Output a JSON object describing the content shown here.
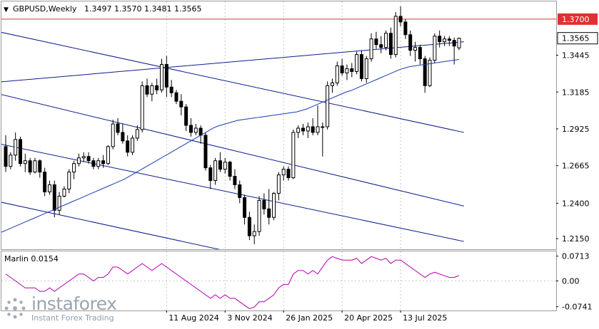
{
  "header": {
    "menu_glyph": "▼",
    "symbol": "GBPUSD,Weekly",
    "open": "1.3497",
    "high": "1.3570",
    "low": "1.3481",
    "close": "1.3565"
  },
  "indicator": {
    "label": "Marlin 0.0154"
  },
  "brand": {
    "name": "instaforex",
    "tagline": "Instant Forex Trading"
  },
  "colors": {
    "bull": "#ffffff",
    "bear": "#000000",
    "channel": "#0c1c8c",
    "ma": "#1a3bb0",
    "resistance": "#e03030",
    "marlin": "#b000b0",
    "grid": "#c8c8c8"
  },
  "chart_data": [
    {
      "type": "candlestick",
      "symbol": "GBPUSD",
      "timeframe": "Weekly",
      "y_ticks": [
        "1.3445",
        "1.3185",
        "1.2925",
        "1.2665",
        "1.2400",
        "1.2150"
      ],
      "ylim": [
        1.2075,
        1.3825
      ],
      "x_ticks": [
        "11 Aug 2024",
        "3 Nov 2024",
        "26 Jan 2025",
        "20 Apr 2025",
        "13 Jul 2025"
      ],
      "horizontal_levels": [
        {
          "label": "1.3700",
          "value": 1.37,
          "color": "#e03030"
        }
      ],
      "current_price_label": "1.3565",
      "current_price": 1.3565,
      "candles": [
        [
          1.28,
          1.288,
          1.262,
          1.266
        ],
        [
          1.266,
          1.276,
          1.264,
          1.274
        ],
        [
          1.274,
          1.29,
          1.27,
          1.285
        ],
        [
          1.285,
          1.287,
          1.266,
          1.268
        ],
        [
          1.268,
          1.275,
          1.262,
          1.27
        ],
        [
          1.27,
          1.272,
          1.26,
          1.262
        ],
        [
          1.262,
          1.272,
          1.261,
          1.27
        ],
        [
          1.27,
          1.271,
          1.258,
          1.262
        ],
        [
          1.262,
          1.265,
          1.245,
          1.248
        ],
        [
          1.248,
          1.256,
          1.246,
          1.253
        ],
        [
          1.253,
          1.256,
          1.23,
          1.235
        ],
        [
          1.235,
          1.248,
          1.232,
          1.245
        ],
        [
          1.245,
          1.252,
          1.244,
          1.25
        ],
        [
          1.25,
          1.264,
          1.247,
          1.262
        ],
        [
          1.262,
          1.27,
          1.257,
          1.268
        ],
        [
          1.268,
          1.275,
          1.266,
          1.272
        ],
        [
          1.272,
          1.276,
          1.269,
          1.273
        ],
        [
          1.273,
          1.276,
          1.268,
          1.27
        ],
        [
          1.27,
          1.272,
          1.264,
          1.266
        ],
        [
          1.266,
          1.272,
          1.264,
          1.27
        ],
        [
          1.27,
          1.274,
          1.265,
          1.268
        ],
        [
          1.268,
          1.281,
          1.267,
          1.28
        ],
        [
          1.28,
          1.299,
          1.278,
          1.296
        ],
        [
          1.296,
          1.3,
          1.288,
          1.29
        ],
        [
          1.29,
          1.296,
          1.282,
          1.284
        ],
        [
          1.284,
          1.288,
          1.273,
          1.276
        ],
        [
          1.276,
          1.288,
          1.274,
          1.286
        ],
        [
          1.286,
          1.295,
          1.284,
          1.292
        ],
        [
          1.292,
          1.326,
          1.29,
          1.323
        ],
        [
          1.323,
          1.328,
          1.315,
          1.317
        ],
        [
          1.317,
          1.325,
          1.312,
          1.323
        ],
        [
          1.323,
          1.328,
          1.317,
          1.32
        ],
        [
          1.32,
          1.342,
          1.318,
          1.338
        ],
        [
          1.338,
          1.344,
          1.315,
          1.322
        ],
        [
          1.322,
          1.327,
          1.315,
          1.318
        ],
        [
          1.318,
          1.32,
          1.31,
          1.312
        ],
        [
          1.312,
          1.317,
          1.302,
          1.308
        ],
        [
          1.308,
          1.31,
          1.291,
          1.295
        ],
        [
          1.295,
          1.3,
          1.287,
          1.29
        ],
        [
          1.29,
          1.296,
          1.288,
          1.293
        ],
        [
          1.293,
          1.295,
          1.282,
          1.288
        ],
        [
          1.288,
          1.29,
          1.263,
          1.265
        ],
        [
          1.265,
          1.267,
          1.25,
          1.256
        ],
        [
          1.256,
          1.272,
          1.253,
          1.27
        ],
        [
          1.27,
          1.276,
          1.262,
          1.264
        ],
        [
          1.264,
          1.272,
          1.261,
          1.269
        ],
        [
          1.269,
          1.27,
          1.256,
          1.259
        ],
        [
          1.259,
          1.264,
          1.25,
          1.253
        ],
        [
          1.253,
          1.256,
          1.24,
          1.244
        ],
        [
          1.244,
          1.246,
          1.225,
          1.23
        ],
        [
          1.23,
          1.234,
          1.214,
          1.217
        ],
        [
          1.217,
          1.225,
          1.211,
          1.22
        ],
        [
          1.22,
          1.245,
          1.217,
          1.242
        ],
        [
          1.242,
          1.247,
          1.232,
          1.236
        ],
        [
          1.236,
          1.25,
          1.225,
          1.23
        ],
        [
          1.23,
          1.248,
          1.228,
          1.247
        ],
        [
          1.247,
          1.262,
          1.242,
          1.26
        ],
        [
          1.26,
          1.266,
          1.256,
          1.264
        ],
        [
          1.264,
          1.266,
          1.256,
          1.258
        ],
        [
          1.258,
          1.292,
          1.257,
          1.29
        ],
        [
          1.29,
          1.295,
          1.286,
          1.293
        ],
        [
          1.293,
          1.296,
          1.288,
          1.291
        ],
        [
          1.291,
          1.297,
          1.286,
          1.294
        ],
        [
          1.294,
          1.3,
          1.288,
          1.29
        ],
        [
          1.29,
          1.309,
          1.288,
          1.294
        ],
        [
          1.294,
          1.297,
          1.273,
          1.294
        ],
        [
          1.294,
          1.326,
          1.292,
          1.323
        ],
        [
          1.323,
          1.328,
          1.318,
          1.325
        ],
        [
          1.325,
          1.34,
          1.323,
          1.337
        ],
        [
          1.337,
          1.342,
          1.33,
          1.332
        ],
        [
          1.332,
          1.338,
          1.327,
          1.335
        ],
        [
          1.335,
          1.339,
          1.329,
          1.333
        ],
        [
          1.333,
          1.347,
          1.331,
          1.345
        ],
        [
          1.345,
          1.348,
          1.326,
          1.328
        ],
        [
          1.328,
          1.344,
          1.325,
          1.342
        ],
        [
          1.342,
          1.36,
          1.34,
          1.356
        ],
        [
          1.356,
          1.361,
          1.349,
          1.352
        ],
        [
          1.352,
          1.358,
          1.346,
          1.35
        ],
        [
          1.35,
          1.362,
          1.348,
          1.36
        ],
        [
          1.36,
          1.364,
          1.342,
          1.345
        ],
        [
          1.345,
          1.375,
          1.343,
          1.372
        ],
        [
          1.372,
          1.379,
          1.365,
          1.368
        ],
        [
          1.368,
          1.37,
          1.356,
          1.359
        ],
        [
          1.359,
          1.362,
          1.344,
          1.348
        ],
        [
          1.348,
          1.354,
          1.34,
          1.35
        ],
        [
          1.35,
          1.352,
          1.338,
          1.342
        ],
        [
          1.342,
          1.344,
          1.318,
          1.323
        ],
        [
          1.323,
          1.343,
          1.322,
          1.341
        ],
        [
          1.341,
          1.36,
          1.339,
          1.358
        ],
        [
          1.358,
          1.362,
          1.35,
          1.354
        ],
        [
          1.354,
          1.358,
          1.351,
          1.356
        ],
        [
          1.356,
          1.358,
          1.351,
          1.355
        ],
        [
          1.355,
          1.357,
          1.338,
          1.351
        ],
        [
          1.3497,
          1.357,
          1.3481,
          1.3565
        ]
      ],
      "moving_average": {
        "values": [
          1.2195,
          1.221,
          1.2225,
          1.224,
          1.2255,
          1.227,
          1.2285,
          1.23,
          1.2315,
          1.233,
          1.2345,
          1.236,
          1.2375,
          1.239,
          1.2405,
          1.242,
          1.2435,
          1.245,
          1.2465,
          1.248,
          1.2495,
          1.251,
          1.2525,
          1.254,
          1.2555,
          1.257,
          1.259,
          1.261,
          1.263,
          1.265,
          1.267,
          1.269,
          1.271,
          1.273,
          1.275,
          1.277,
          1.279,
          1.281,
          1.283,
          1.285,
          1.287,
          1.289,
          1.291,
          1.293,
          1.2945,
          1.2955,
          1.2965,
          1.2975,
          1.2985,
          1.299,
          1.2995,
          1.3,
          1.3005,
          1.301,
          1.3015,
          1.302,
          1.3025,
          1.303,
          1.3035,
          1.304,
          1.3045,
          1.3055,
          1.3065,
          1.308,
          1.3095,
          1.311,
          1.3125,
          1.314,
          1.3155,
          1.317,
          1.3185,
          1.3195,
          1.321,
          1.3225,
          1.324,
          1.3255,
          1.327,
          1.3285,
          1.33,
          1.3315,
          1.333,
          1.3345,
          1.3355,
          1.3365,
          1.337,
          1.3375,
          1.338,
          1.3385,
          1.339,
          1.3395,
          1.34,
          1.3405,
          1.341,
          1.3415
        ]
      },
      "channel_lines": [
        {
          "from": [
            0,
            1.326
          ],
          "to": [
            94,
            1.354
          ]
        },
        {
          "from": [
            0,
            1.36
          ],
          "to": [
            94,
            1.29
          ]
        },
        {
          "from": [
            0,
            1.316
          ],
          "to": [
            94,
            1.238
          ]
        },
        {
          "from": [
            0,
            1.281
          ],
          "to": [
            94,
            1.213
          ]
        },
        {
          "from": [
            0,
            1.24
          ],
          "to": [
            94,
            1.17
          ]
        }
      ]
    },
    {
      "type": "line",
      "title": "Marlin 0.0154",
      "y_ticks": [
        "0.0713",
        "0.00",
        "-0.0741"
      ],
      "ylim": [
        -0.085,
        0.085
      ],
      "series": [
        {
          "name": "Marlin",
          "values": [
            0.02,
            0.01,
            0.0,
            -0.01,
            -0.02,
            -0.02,
            -0.02,
            -0.03,
            -0.03,
            -0.02,
            -0.03,
            -0.02,
            -0.01,
            0.0,
            0.01,
            0.02,
            0.02,
            0.01,
            0.0,
            0.01,
            0.01,
            0.02,
            0.04,
            0.04,
            0.03,
            0.02,
            0.03,
            0.04,
            0.05,
            0.04,
            0.03,
            0.04,
            0.05,
            0.04,
            0.03,
            0.02,
            0.01,
            0.0,
            -0.01,
            -0.02,
            -0.03,
            -0.04,
            -0.05,
            -0.04,
            -0.05,
            -0.04,
            -0.05,
            -0.05,
            -0.06,
            -0.07,
            -0.08,
            -0.075,
            -0.06,
            -0.06,
            -0.05,
            -0.04,
            -0.02,
            -0.01,
            -0.01,
            0.02,
            0.03,
            0.03,
            0.02,
            0.03,
            0.02,
            0.04,
            0.06,
            0.07,
            0.065,
            0.06,
            0.06,
            0.06,
            0.065,
            0.05,
            0.06,
            0.07,
            0.065,
            0.06,
            0.065,
            0.05,
            0.06,
            0.06,
            0.05,
            0.04,
            0.03,
            0.02,
            0.01,
            0.02,
            0.025,
            0.02,
            0.015,
            0.01,
            0.01,
            0.0154
          ]
        }
      ]
    }
  ]
}
